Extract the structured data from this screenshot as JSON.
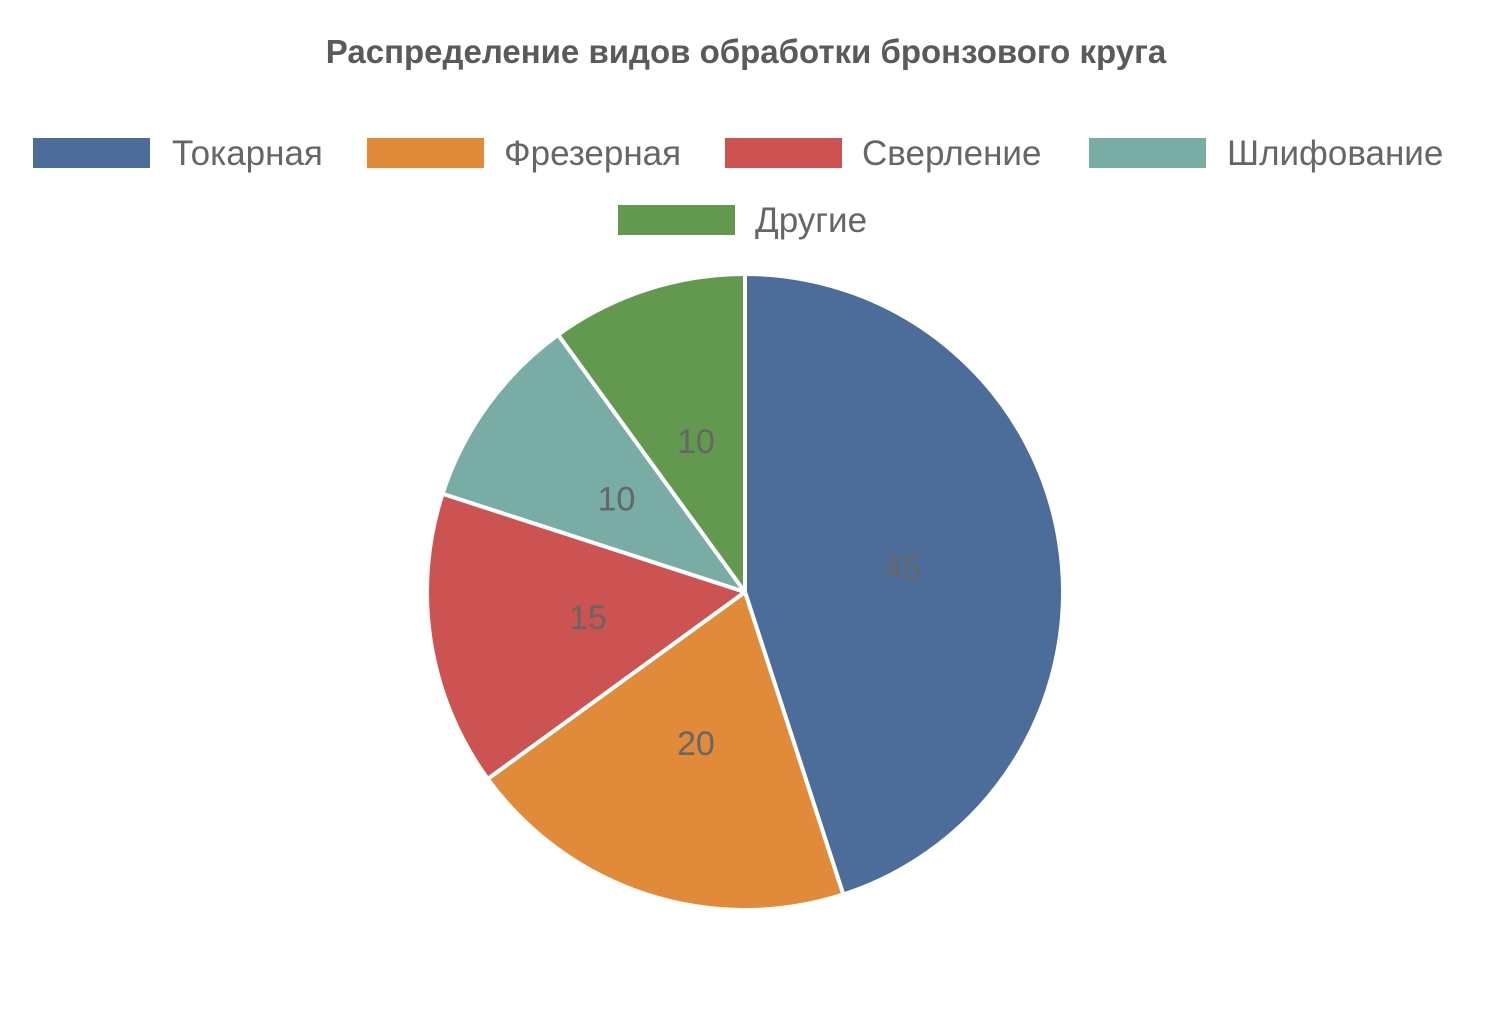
{
  "chart_data": {
    "type": "pie",
    "title": "Распределение видов обработки бронзового круга",
    "categories": [
      "Токарная",
      "Фрезерная",
      "Сверление",
      "Шлифование",
      "Другие"
    ],
    "values": [
      45,
      20,
      15,
      10,
      10
    ],
    "colors": [
      "#4c6c9a",
      "#e08a3a",
      "#cd5353",
      "#7aaca6",
      "#62994e"
    ],
    "data_labels": [
      "45",
      "20",
      "15",
      "10",
      "10"
    ],
    "legend_position": "top",
    "start_angle": "12 o'clock",
    "direction": "clockwise"
  }
}
